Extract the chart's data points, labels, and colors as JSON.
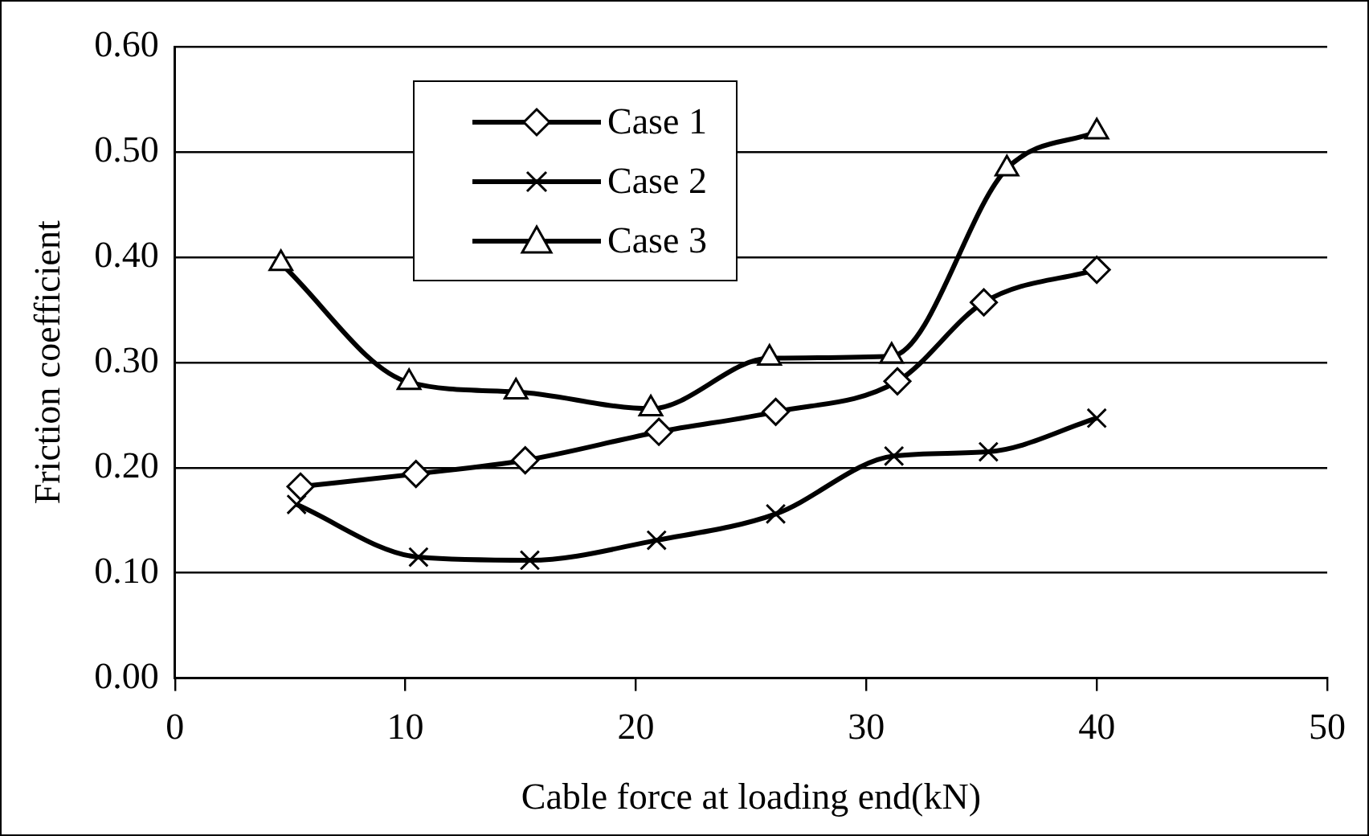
{
  "chart_data": {
    "type": "line",
    "xlabel": "Cable force at loading end(kN)",
    "ylabel": "Friction coefficient",
    "xlim": [
      0,
      50
    ],
    "xticks": [
      0,
      10,
      20,
      30,
      40,
      50
    ],
    "ylim": [
      0,
      0.6
    ],
    "yticks": [
      {
        "value": 0,
        "label": "0.00"
      },
      {
        "value": 0.1,
        "label": "0.10"
      },
      {
        "value": 0.2,
        "label": "0.20"
      },
      {
        "value": 0.3,
        "label": "0.30"
      },
      {
        "value": 0.4,
        "label": "0.40"
      },
      {
        "value": 0.5,
        "label": "0.50"
      },
      {
        "value": 0.6,
        "label": "0.60"
      }
    ],
    "grid": "y",
    "legend": "top left",
    "line_style": "solid",
    "series": [
      {
        "name": "Case 1",
        "color": "#000000",
        "marker": "diamond",
        "x": [
          5.45,
          10.46,
          15.2,
          21.0,
          26.07,
          31.35,
          35.1,
          40.0
        ],
        "values": [
          0.182,
          0.194,
          0.207,
          0.234,
          0.253,
          0.282,
          0.357,
          0.388
        ]
      },
      {
        "name": "Case 2",
        "color": "#000000",
        "marker": "cross",
        "x": [
          5.28,
          10.57,
          15.4,
          20.9,
          26.07,
          31.2,
          35.3,
          40.0
        ],
        "values": [
          0.165,
          0.115,
          0.112,
          0.131,
          0.156,
          0.211,
          0.215,
          0.247
        ]
      },
      {
        "name": "Case 3",
        "color": "#000000",
        "marker": "triangle",
        "x": [
          4.6,
          10.16,
          14.8,
          20.65,
          25.8,
          31.1,
          36.1,
          40.0
        ],
        "values": [
          0.394,
          0.281,
          0.272,
          0.256,
          0.304,
          0.306,
          0.484,
          0.519
        ]
      }
    ]
  }
}
